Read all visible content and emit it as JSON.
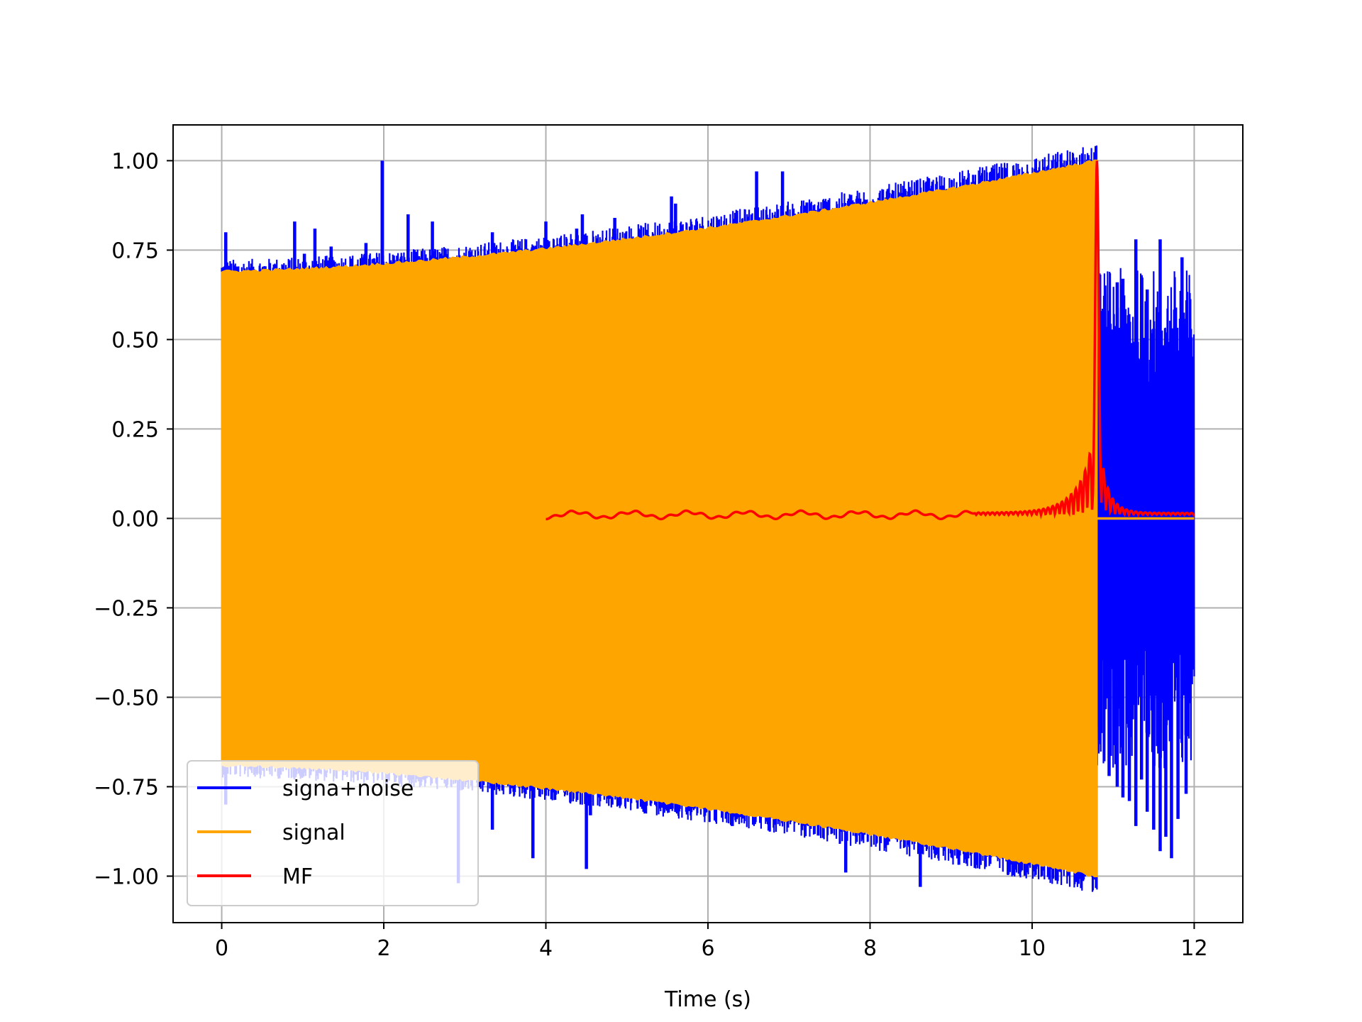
{
  "chart_data": {
    "type": "line",
    "title": "",
    "xlabel": "Time (s)",
    "ylabel": "",
    "xlim": [
      -0.6,
      12.6
    ],
    "ylim": [
      -1.13,
      1.1
    ],
    "xticks": [
      0,
      2,
      4,
      6,
      8,
      10,
      12
    ],
    "xtick_labels": [
      "0",
      "2",
      "4",
      "6",
      "8",
      "10",
      "12"
    ],
    "yticks": [
      1.0,
      0.75,
      0.5,
      0.25,
      0.0,
      -0.25,
      -0.5,
      -0.75,
      -1.0
    ],
    "ytick_labels": [
      "1.00",
      "0.75",
      "0.50",
      "0.25",
      "0.00",
      "−0.25",
      "−0.50",
      "−0.75",
      "−1.00"
    ],
    "grid": true,
    "legend_position": "lower-left",
    "series": [
      {
        "name": "signa+noise",
        "color": "#0000ff",
        "description_points": [
          [
            0.05,
            0.8
          ],
          [
            0.1,
            0.7
          ],
          [
            0.65,
            0.71
          ],
          [
            0.9,
            0.83
          ],
          [
            1.02,
            0.74
          ],
          [
            1.15,
            0.81
          ],
          [
            1.35,
            0.76
          ],
          [
            1.78,
            0.77
          ],
          [
            1.98,
            1.0
          ],
          [
            2.3,
            0.85
          ],
          [
            2.6,
            0.83
          ],
          [
            2.65,
            0.73
          ],
          [
            3.34,
            0.8
          ],
          [
            4.0,
            0.83
          ],
          [
            4.38,
            0.81
          ],
          [
            4.45,
            0.85
          ],
          [
            4.85,
            0.84
          ],
          [
            5.55,
            0.9
          ],
          [
            5.6,
            0.88
          ],
          [
            6.15,
            0.8
          ],
          [
            6.3,
            0.81
          ],
          [
            6.6,
            0.97
          ],
          [
            6.92,
            0.97
          ],
          [
            8.85,
            0.9
          ],
          [
            0.05,
            -0.8
          ],
          [
            2.92,
            -1.02
          ],
          [
            3.34,
            -0.87
          ],
          [
            3.84,
            -0.95
          ],
          [
            4.5,
            -0.98
          ],
          [
            4.55,
            -0.83
          ],
          [
            6.3,
            -0.86
          ],
          [
            7.7,
            -0.99
          ],
          [
            8.62,
            -1.03
          ],
          [
            9.95,
            -0.97
          ],
          [
            10.85,
            0.58
          ],
          [
            10.95,
            0.48
          ],
          [
            11.05,
            0.66
          ],
          [
            11.12,
            0.67
          ],
          [
            11.2,
            0.43
          ],
          [
            11.28,
            0.78
          ],
          [
            11.35,
            0.55
          ],
          [
            11.42,
            0.64
          ],
          [
            11.5,
            0.53
          ],
          [
            11.58,
            0.78
          ],
          [
            11.65,
            0.52
          ],
          [
            11.75,
            0.51
          ],
          [
            11.85,
            0.73
          ],
          [
            11.95,
            0.38
          ],
          [
            10.85,
            -0.6
          ],
          [
            10.95,
            -0.72
          ],
          [
            11.05,
            -0.75
          ],
          [
            11.12,
            -0.78
          ],
          [
            11.2,
            -0.79
          ],
          [
            11.28,
            -0.86
          ],
          [
            11.35,
            -0.73
          ],
          [
            11.42,
            -0.82
          ],
          [
            11.5,
            -0.87
          ],
          [
            11.58,
            -0.93
          ],
          [
            11.65,
            -0.89
          ],
          [
            11.72,
            -0.95
          ],
          [
            11.8,
            -0.84
          ],
          [
            11.9,
            -0.77
          ]
        ]
      },
      {
        "name": "signal",
        "color": "#ffa500",
        "t_start": 0,
        "t_end": 10.8,
        "envelope_start": 0.69,
        "envelope_end": 1.0
      },
      {
        "name": "MF",
        "color": "#ff0000",
        "t_start": 4.0,
        "t_peak": 10.8,
        "t_end": 12.0,
        "peak": 1.0,
        "baseline": 0.01
      }
    ]
  }
}
